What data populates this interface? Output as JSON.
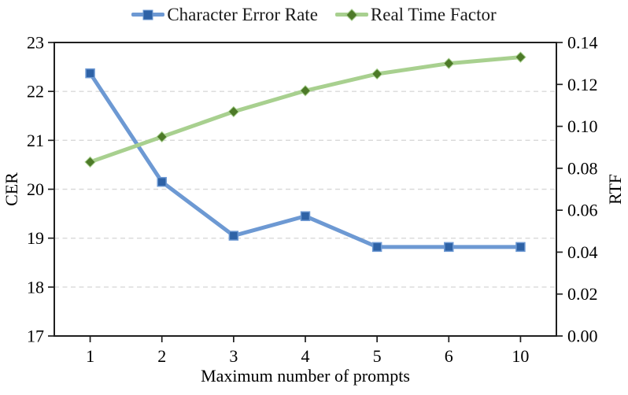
{
  "figure": {
    "background": "#ffffff",
    "axis_color": "#1f1f1f",
    "text_color": "#000000"
  },
  "legend": {
    "position": "top-center",
    "items": [
      {
        "label": "Character Error Rate",
        "marker": "square-on-line",
        "line_color": "#6D99D3",
        "marker_fill": "#2E62A6"
      },
      {
        "label": "Real Time Factor",
        "marker": "diamond-on-line",
        "line_color": "#A8D08F",
        "marker_fill": "#4D7A28"
      }
    ]
  },
  "chart_data": {
    "type": "line",
    "categories": [
      "1",
      "2",
      "3",
      "4",
      "5",
      "6",
      "10"
    ],
    "xlabel": "Maximum number of prompts",
    "axes": {
      "left": {
        "label": "CER",
        "min": 17,
        "max": 23,
        "ticks": [
          "17",
          "18",
          "19",
          "20",
          "21",
          "22",
          "23"
        ]
      },
      "right": {
        "label": "RTF",
        "min": 0.0,
        "max": 0.14,
        "ticks": [
          "0.00",
          "0.02",
          "0.04",
          "0.06",
          "0.08",
          "0.10",
          "0.12",
          "0.14"
        ]
      }
    },
    "series": [
      {
        "name": "Character Error Rate",
        "axis": "left",
        "marker": "square",
        "line_color": "#6D99D3",
        "marker_fill": "#2E62A6",
        "marker_stroke": "#6D99D3",
        "values": [
          22.37,
          20.15,
          19.05,
          19.45,
          18.82,
          18.82,
          18.82
        ]
      },
      {
        "name": "Real Time Factor",
        "axis": "right",
        "marker": "diamond",
        "line_color": "#A8D08F",
        "marker_fill": "#4D7A28",
        "marker_stroke": "#A8D08F",
        "values": [
          0.083,
          0.095,
          0.107,
          0.117,
          0.125,
          0.13,
          0.133
        ]
      }
    ],
    "grid": {
      "visible": true,
      "style": "dashed",
      "color": "#D9D9D9",
      "at_left_values": [
        18,
        19,
        20,
        21,
        22
      ]
    },
    "legend_position": "top"
  }
}
